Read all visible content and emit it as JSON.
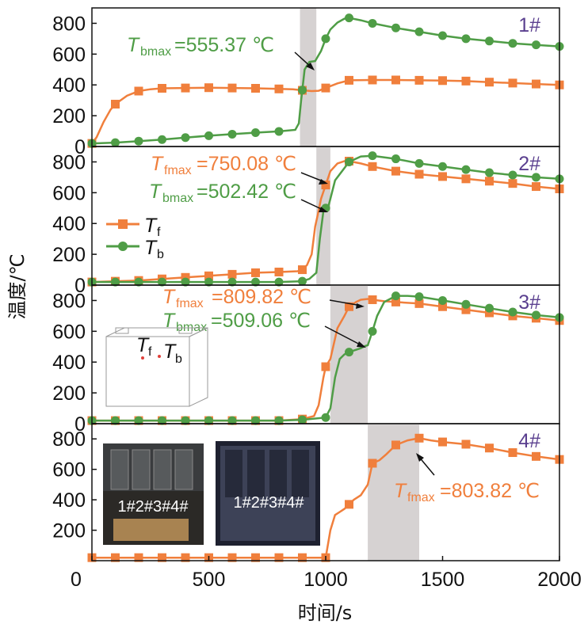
{
  "chart_data": {
    "type": "line",
    "xlabel": "时间/s",
    "ylabel": "温度/℃",
    "xlim": [
      0,
      2000
    ],
    "ylim": [
      0,
      900
    ],
    "x_ticks": [
      "0",
      "500",
      "1000",
      "1500",
      "2000"
    ],
    "y_ticks": [
      "0",
      "200",
      "400",
      "600",
      "800"
    ],
    "colors": {
      "Tf": "#f07f3c",
      "Tb": "#4f9d46",
      "panel_label": "#5a3f8f",
      "shade": "#d6d2d2"
    },
    "legend": {
      "placement": "left",
      "panel": "2#",
      "entries": [
        {
          "series": "Tf",
          "base": "T",
          "sub": "f",
          "marker": "square"
        },
        {
          "series": "Tb",
          "base": "T",
          "sub": "b",
          "marker": "circle"
        }
      ]
    },
    "panels": [
      {
        "label": "1#",
        "shade": [
          890,
          960
        ],
        "series": [
          {
            "name": "Tf",
            "x": [
              0,
              20,
              50,
              80,
              100,
              150,
              200,
              250,
              300,
              400,
              500,
              600,
              700,
              800,
              860,
              900,
              940,
              970,
              1000,
              1050,
              1100,
              1200,
              1300,
              1400,
              1500,
              1600,
              1700,
              1800,
              1900,
              2000
            ],
            "y": [
              20,
              60,
              160,
              240,
              275,
              330,
              360,
              372,
              378,
              380,
              382,
              380,
              378,
              374,
              372,
              365,
              360,
              362,
              380,
              410,
              430,
              432,
              432,
              430,
              428,
              425,
              418,
              412,
              406,
              400
            ]
          },
          {
            "name": "Tb",
            "x": [
              0,
              100,
              200,
              300,
              400,
              500,
              600,
              700,
              800,
              870,
              885,
              895,
              910,
              930,
              955,
              980,
              1000,
              1020,
              1050,
              1080,
              1100,
              1150,
              1200,
              1300,
              1400,
              1500,
              1600,
              1700,
              1800,
              1900,
              2000
            ],
            "y": [
              20,
              25,
              35,
              45,
              58,
              70,
              80,
              90,
              98,
              108,
              150,
              300,
              500,
              550,
              555,
              620,
              700,
              760,
              805,
              830,
              835,
              820,
              800,
              770,
              745,
              720,
              700,
              685,
              670,
              660,
              650
            ]
          }
        ],
        "annotations": [
          {
            "series": "Tb",
            "base": "T",
            "sub": "bmax",
            "text": "=555.37 ℃"
          }
        ]
      },
      {
        "label": "2#",
        "shade": [
          960,
          1020
        ],
        "series": [
          {
            "name": "Tf",
            "x": [
              0,
              100,
              200,
              300,
              400,
              500,
              600,
              700,
              800,
              880,
              900,
              920,
              940,
              955,
              965,
              980,
              1000,
              1020,
              1050,
              1080,
              1100,
              1150,
              1200,
              1300,
              1400,
              1500,
              1600,
              1700,
              1800,
              1900,
              2000
            ],
            "y": [
              20,
              25,
              30,
              40,
              50,
              60,
              70,
              80,
              85,
              90,
              100,
              130,
              200,
              380,
              450,
              560,
              650,
              740,
              790,
              805,
              805,
              790,
              770,
              740,
              720,
              705,
              690,
              675,
              660,
              640,
              625
            ]
          },
          {
            "name": "Tb",
            "x": [
              0,
              100,
              200,
              300,
              400,
              500,
              600,
              700,
              800,
              900,
              930,
              960,
              975,
              990,
              1000,
              1010,
              1020,
              1040,
              1060,
              1080,
              1100,
              1150,
              1200,
              1300,
              1400,
              1500,
              1600,
              1700,
              1800,
              1900,
              2000
            ],
            "y": [
              20,
              20,
              20,
              20,
              20,
              20,
              20,
              20,
              20,
              25,
              40,
              80,
              300,
              480,
              500,
              502,
              560,
              680,
              720,
              760,
              800,
              835,
              840,
              820,
              790,
              770,
              750,
              730,
              715,
              700,
              690
            ]
          }
        ],
        "annotations": [
          {
            "series": "Tf",
            "base": "T",
            "sub": "fmax",
            "text": "=750.08 ℃"
          },
          {
            "series": "Tb",
            "base": "T",
            "sub": "bmax",
            "text": "=502.42 ℃"
          }
        ]
      },
      {
        "label": "3#",
        "shade": [
          1020,
          1180
        ],
        "series": [
          {
            "name": "Tf",
            "x": [
              0,
              100,
              200,
              300,
              400,
              500,
              600,
              700,
              800,
              900,
              950,
              970,
              990,
              1000,
              1020,
              1050,
              1080,
              1100,
              1130,
              1150,
              1180,
              1200,
              1250,
              1300,
              1400,
              1500,
              1600,
              1700,
              1800,
              1900,
              2000
            ],
            "y": [
              20,
              20,
              20,
              20,
              20,
              20,
              20,
              20,
              20,
              30,
              50,
              120,
              300,
              370,
              420,
              620,
              700,
              760,
              790,
              805,
              810,
              805,
              795,
              790,
              780,
              760,
              740,
              720,
              700,
              685,
              670
            ]
          },
          {
            "name": "Tb",
            "x": [
              0,
              100,
              200,
              300,
              400,
              500,
              600,
              700,
              800,
              900,
              1000,
              1020,
              1040,
              1060,
              1080,
              1100,
              1130,
              1150,
              1170,
              1180,
              1200,
              1220,
              1250,
              1300,
              1350,
              1400,
              1500,
              1600,
              1700,
              1800,
              1900,
              2000
            ],
            "y": [
              20,
              20,
              20,
              20,
              20,
              20,
              20,
              20,
              20,
              25,
              40,
              100,
              300,
              420,
              450,
              465,
              480,
              490,
              505,
              509,
              600,
              700,
              790,
              830,
              830,
              825,
              800,
              775,
              750,
              725,
              705,
              690
            ]
          }
        ],
        "annotations": [
          {
            "series": "Tf",
            "base": "T",
            "sub": "fmax",
            "text": "=809.82 ℃"
          },
          {
            "series": "Tb",
            "base": "T",
            "sub": "bmax",
            "text": "=509.06 ℃"
          }
        ],
        "inset": {
          "description_labels": [
            {
              "base": "T",
              "sub": "f"
            },
            {
              "base": "T",
              "sub": "b"
            }
          ]
        }
      },
      {
        "label": "4#",
        "shade": [
          1180,
          1400
        ],
        "series": [
          {
            "name": "Tf",
            "x": [
              0,
              100,
              200,
              300,
              400,
              500,
              600,
              700,
              800,
              900,
              1000,
              1020,
              1040,
              1060,
              1080,
              1100,
              1120,
              1150,
              1180,
              1200,
              1230,
              1260,
              1300,
              1350,
              1400,
              1450,
              1500,
              1600,
              1700,
              1800,
              1900,
              2000
            ],
            "y": [
              20,
              20,
              20,
              20,
              20,
              20,
              20,
              20,
              20,
              20,
              20,
              200,
              300,
              320,
              340,
              370,
              400,
              430,
              500,
              640,
              660,
              700,
              760,
              790,
              805,
              790,
              780,
              765,
              740,
              710,
              685,
              665
            ]
          }
        ],
        "annotations": [
          {
            "series": "Tf",
            "base": "T",
            "sub": "fmax",
            "text": "=803.82 ℃"
          }
        ],
        "photos": [
          {
            "caption": "1#2#3#4#"
          },
          {
            "caption": "1#2#3#4#"
          }
        ]
      }
    ]
  }
}
